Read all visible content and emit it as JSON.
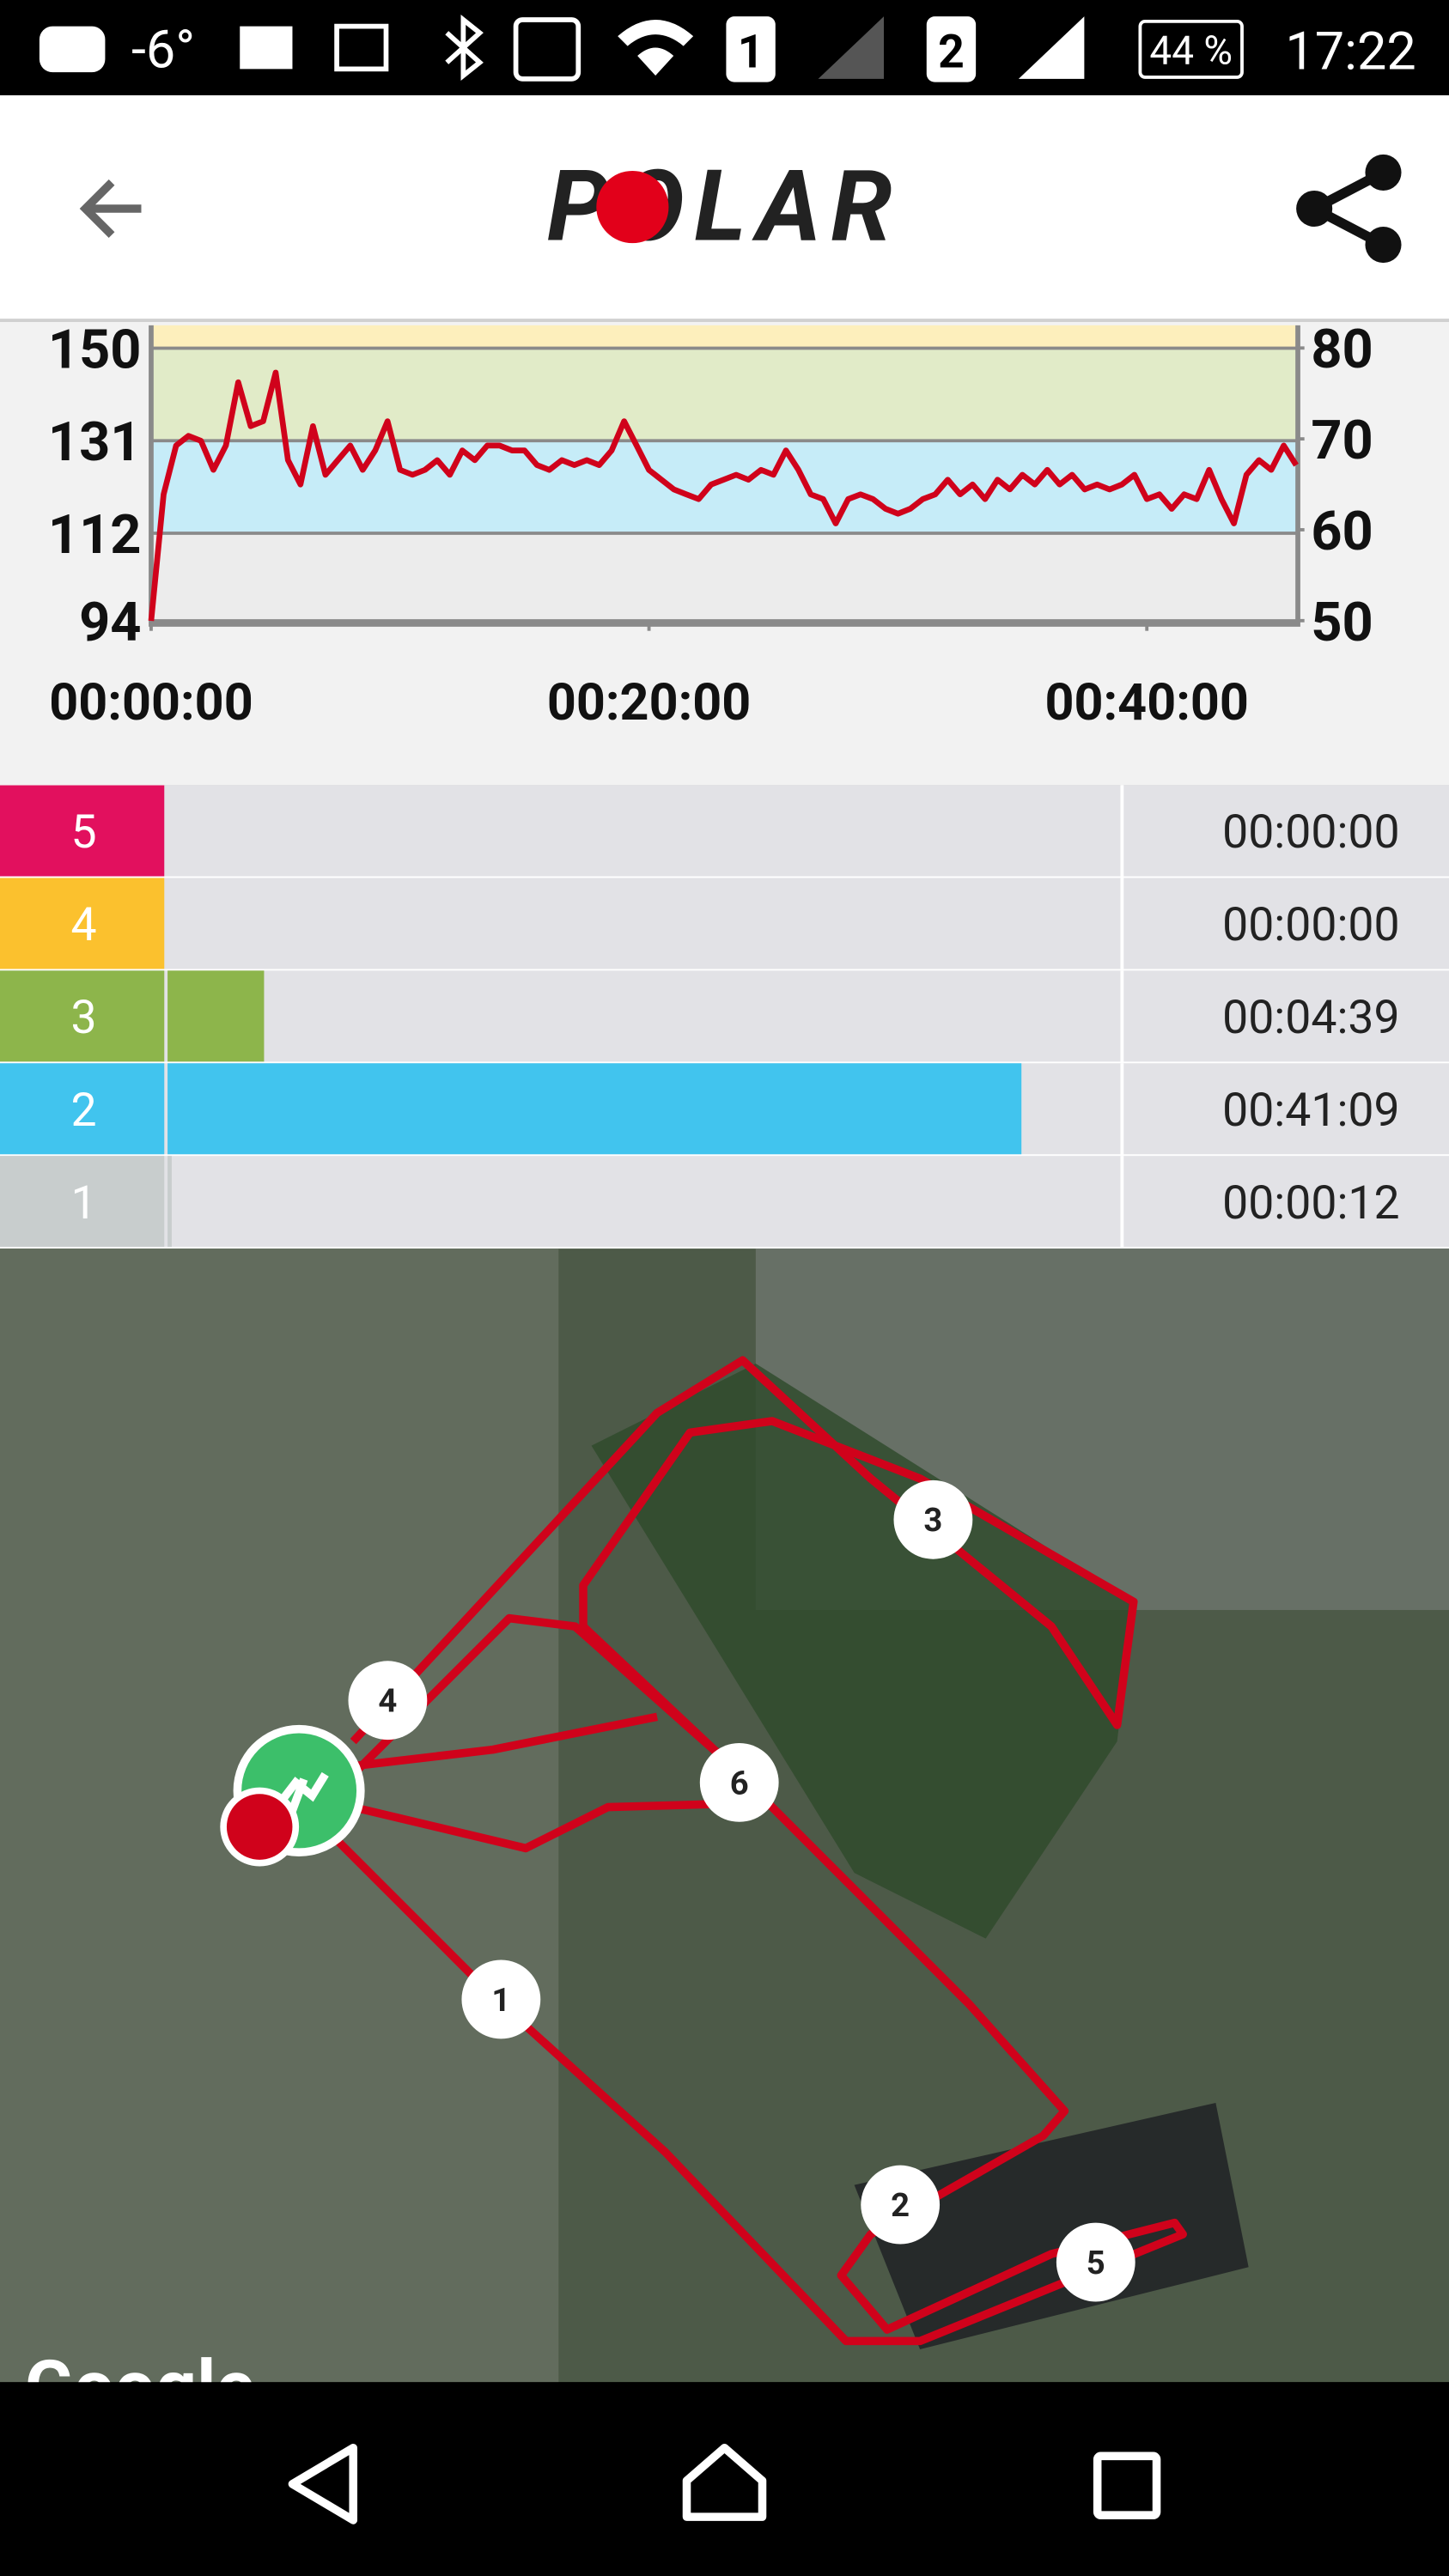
{
  "status_bar": {
    "temperature": "-6°",
    "sim1": "1",
    "sim2": "2",
    "battery": "44 %",
    "time": "17:22"
  },
  "header": {
    "logo": "POLAR"
  },
  "chart_data": {
    "type": "line",
    "x": [
      0,
      30,
      60,
      90,
      120,
      150,
      180,
      210,
      240,
      270,
      300,
      330,
      360,
      390,
      420,
      450,
      480,
      510,
      540,
      570,
      600,
      630,
      660,
      690,
      720,
      750,
      780,
      810,
      840,
      870,
      900,
      930,
      960,
      990,
      1020,
      1050,
      1080,
      1110,
      1140,
      1170,
      1200,
      1230,
      1260,
      1290,
      1320,
      1350,
      1380,
      1410,
      1440,
      1470,
      1500,
      1530,
      1560,
      1590,
      1620,
      1650,
      1680,
      1710,
      1740,
      1770,
      1800,
      1830,
      1860,
      1890,
      1920,
      1950,
      1980,
      2010,
      2040,
      2070,
      2100,
      2130,
      2160,
      2190,
      2220,
      2250,
      2280,
      2310,
      2340,
      2370,
      2400,
      2430,
      2460,
      2490,
      2520,
      2550,
      2580,
      2610,
      2640,
      2670,
      2700,
      2730,
      2760
    ],
    "series": [
      {
        "color": "#d0021b",
        "values": [
          94,
          120,
          130,
          132,
          131,
          125,
          130,
          143,
          134,
          135,
          145,
          127,
          122,
          134,
          124,
          127,
          130,
          125,
          129,
          135,
          125,
          124,
          125,
          127,
          124,
          129,
          127,
          130,
          130,
          129,
          129,
          126,
          125,
          127,
          126,
          127,
          126,
          129,
          135,
          130,
          125,
          123,
          121,
          120,
          119,
          122,
          123,
          124,
          123,
          125,
          124,
          129,
          125,
          120,
          119,
          114,
          119,
          120,
          119,
          117,
          116,
          117,
          119,
          120,
          123,
          120,
          122,
          119,
          123,
          121,
          124,
          122,
          125,
          122,
          124,
          121,
          122,
          121,
          122,
          124,
          119,
          120,
          117,
          120,
          119,
          125,
          119,
          114,
          124,
          127,
          125,
          130,
          126
        ]
      }
    ],
    "xlim": [
      0,
      2764
    ],
    "xticks": [
      {
        "value": 0,
        "label": "00:00:00"
      },
      {
        "value": 1200,
        "label": "00:20:00"
      },
      {
        "value": 2400,
        "label": "00:40:00"
      }
    ],
    "ylim": [
      93.3,
      154.7
    ],
    "yticks": [
      94,
      112,
      131,
      150
    ],
    "y2lim": [
      49.6,
      82.5
    ],
    "y2ticks": [
      50,
      60,
      70,
      80
    ],
    "band_colors": [
      "#ececec",
      "#ececec",
      "#c6ecf8",
      "#e1ebc8",
      "#fdefbc"
    ],
    "grid": true
  },
  "zones": {
    "rows": [
      {
        "zone": "5",
        "color": "#e2105e",
        "time": "00:00:00"
      },
      {
        "zone": "4",
        "color": "#fbc12e",
        "time": "00:00:00"
      },
      {
        "zone": "3",
        "color": "#8db54b",
        "time": "00:04:39"
      },
      {
        "zone": "2",
        "color": "#41c4ee",
        "time": "00:41:09"
      },
      {
        "zone": "1",
        "color": "#c8cdcd",
        "time": "00:00:12"
      }
    ]
  },
  "map": {
    "markers": [
      "1",
      "2",
      "3",
      "4",
      "5",
      "6"
    ],
    "attribution": "Google"
  }
}
